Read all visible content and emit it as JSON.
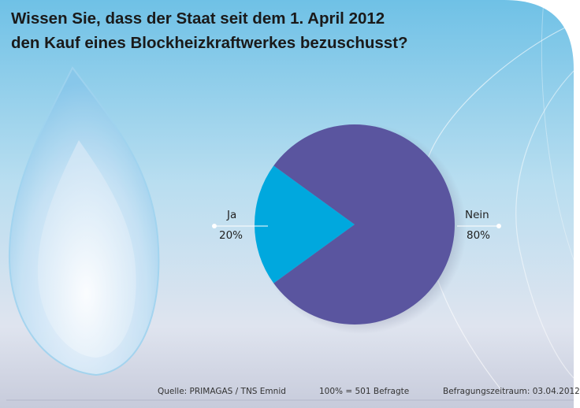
{
  "title_lines": [
    "Wissen Sie, dass der Staat seit dem 1. April 2012",
    "den Kauf eines Blockheizkraftwerkes bezuschusst?"
  ],
  "chart_data": {
    "type": "pie",
    "slices": [
      {
        "label": "Ja",
        "value": 20,
        "value_label": "20%",
        "color": "#00a8de"
      },
      {
        "label": "Nein",
        "value": 80,
        "value_label": "80%",
        "color": "#5a559f"
      }
    ]
  },
  "footer": {
    "source": "Quelle: PRIMAGAS / TNS Emnid",
    "sample": "100% = 501 Befragte",
    "period": "Befragungszeitraum: 03.04.2012"
  },
  "colors": {
    "ja": "#00a8de",
    "nein": "#5a559f"
  }
}
